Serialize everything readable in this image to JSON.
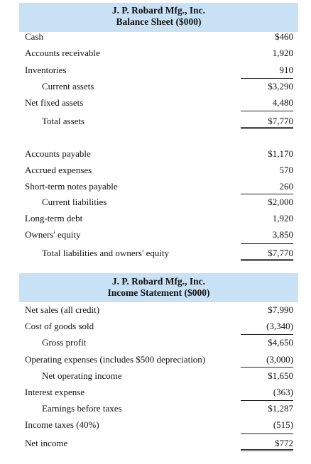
{
  "balance_sheet": {
    "company": "J. P. Robard Mfg., Inc.",
    "title": "Balance Sheet ($000)",
    "rows": [
      {
        "label": "Cash",
        "value": "$460"
      },
      {
        "label": "Accounts receivable",
        "value": "1,920"
      },
      {
        "label": "Inventories",
        "value": "910"
      },
      {
        "label": "Current assets",
        "value": "$3,290"
      },
      {
        "label": "Net fixed assets",
        "value": "4,480"
      },
      {
        "label": "Total assets",
        "value": "$7,770"
      },
      {
        "label": "Accounts payable",
        "value": "$1,170"
      },
      {
        "label": "Accrued expenses",
        "value": "570"
      },
      {
        "label": "Short-term notes payable",
        "value": "260"
      },
      {
        "label": "Current liabilities",
        "value": "$2,000"
      },
      {
        "label": "Long-term debt",
        "value": "1,920"
      },
      {
        "label": "Owners' equity",
        "value": "3,850"
      },
      {
        "label": "Total liabilities and owners' equity",
        "value": "$7,770"
      }
    ]
  },
  "income_statement": {
    "company": "J. P. Robard Mfg., Inc.",
    "title": "Income Statement ($000)",
    "rows": [
      {
        "label": "Net sales (all credit)",
        "value": "$7,990"
      },
      {
        "label": "Cost of goods sold",
        "value": "(3,340)"
      },
      {
        "label": "Gross profit",
        "value": "$4,650"
      },
      {
        "label": "Operating expenses (includes $500 depreciation)",
        "value": "(3,000)"
      },
      {
        "label": "Net operating income",
        "value": "$1,650"
      },
      {
        "label": "Interest expense",
        "value": "(363)"
      },
      {
        "label": "Earnings before taxes",
        "value": "$1,287"
      },
      {
        "label": "Income taxes (40%)",
        "value": "(515)"
      },
      {
        "label": "Net income",
        "value": "$772"
      }
    ]
  },
  "colors": {
    "header_background": "#c9e1f5"
  }
}
